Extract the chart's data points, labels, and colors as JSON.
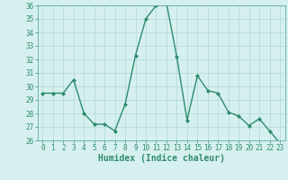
{
  "x": [
    0,
    1,
    2,
    3,
    4,
    5,
    6,
    7,
    8,
    9,
    10,
    11,
    12,
    13,
    14,
    15,
    16,
    17,
    18,
    19,
    20,
    21,
    22,
    23
  ],
  "y": [
    29.5,
    29.5,
    29.5,
    30.5,
    28.0,
    27.2,
    27.2,
    26.7,
    28.7,
    32.3,
    35.0,
    36.0,
    36.2,
    32.2,
    27.5,
    30.8,
    29.7,
    29.5,
    28.1,
    27.8,
    27.1,
    27.6,
    26.7,
    25.8
  ],
  "line_color": "#2e8b6e",
  "marker": "D",
  "marker_size": 2.0,
  "line_width": 1.0,
  "bg_color": "#d6f0ef",
  "grid_color": "#b0d8d8",
  "xlabel": "Humidex (Indice chaleur)",
  "ylim": [
    26,
    36
  ],
  "xlim": [
    -0.5,
    23.5
  ],
  "yticks": [
    26,
    27,
    28,
    29,
    30,
    31,
    32,
    33,
    34,
    35,
    36
  ],
  "xticks": [
    0,
    1,
    2,
    3,
    4,
    5,
    6,
    7,
    8,
    9,
    10,
    11,
    12,
    13,
    14,
    15,
    16,
    17,
    18,
    19,
    20,
    21,
    22,
    23
  ],
  "tick_fontsize": 5.5,
  "xlabel_fontsize": 7.0,
  "tick_color": "#2e8b6e",
  "spine_color": "#4a9e8a"
}
